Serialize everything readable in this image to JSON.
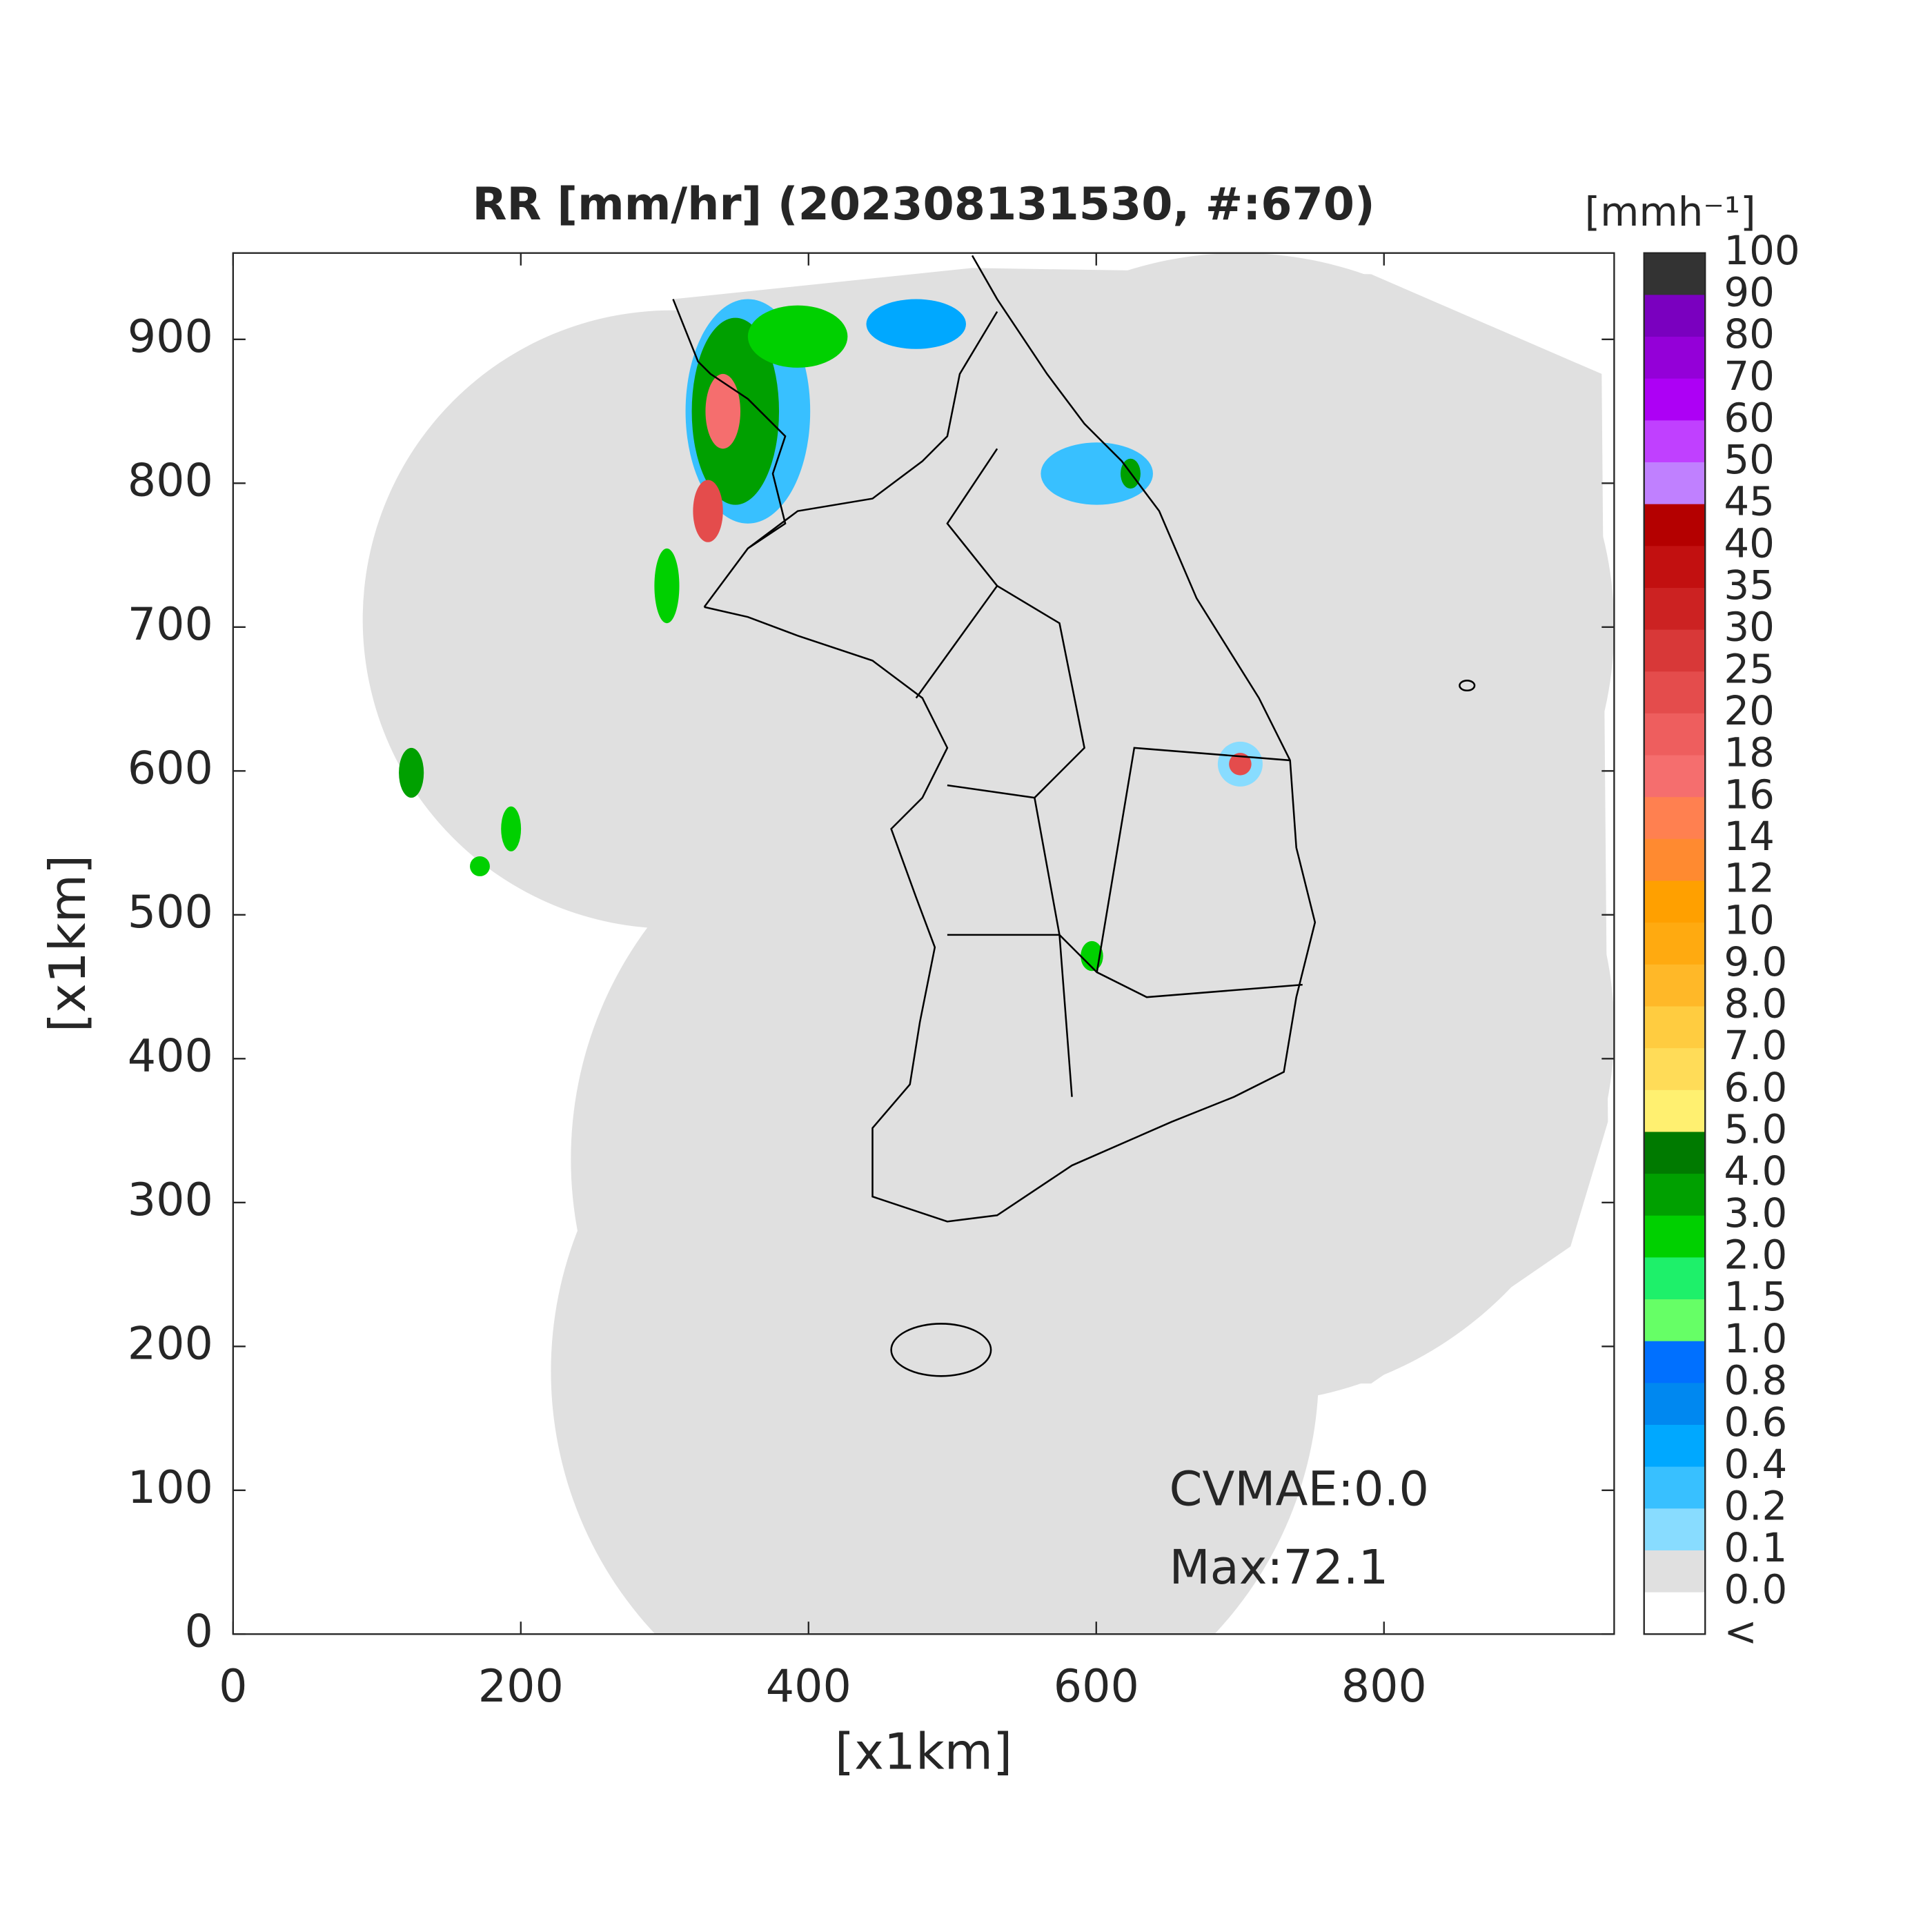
{
  "chart_data": {
    "type": "map",
    "title": "RR [mm/hr] (202308131530, #:670)",
    "x_label": "[x1km]",
    "y_label": "[x1km]",
    "xlim": [
      0,
      960
    ],
    "ylim": [
      0,
      960
    ],
    "xticks": [
      0,
      200,
      400,
      600,
      800
    ],
    "yticks": [
      0,
      100,
      200,
      300,
      400,
      500,
      600,
      700,
      800,
      900
    ],
    "annotations": [
      "CVMAE:0.0",
      "Max:72.1"
    ],
    "colorbar": {
      "unit_label": "[mmh⁻¹]",
      "levels": [
        "100",
        "90",
        "80",
        "70",
        "60",
        "50",
        "45",
        "40",
        "35",
        "30",
        "25",
        "20",
        "18",
        "16",
        "14",
        "12",
        "10",
        "9.0",
        "8.0",
        "7.0",
        "6.0",
        "5.0",
        "4.0",
        "3.0",
        "2.0",
        "1.5",
        "1.0",
        "0.8",
        "0.6",
        "0.4",
        "0.2",
        "0.1",
        "0.0",
        "<"
      ],
      "colors": [
        "#333333",
        "#7a00bf",
        "#9400d8",
        "#ad00f5",
        "#c040ff",
        "#c080ff",
        "#b40000",
        "#c21010",
        "#cc2222",
        "#d83838",
        "#e44c4c",
        "#ee5e5e",
        "#f56e6e",
        "#ff8050",
        "#ff8a30",
        "#ffa000",
        "#ffaa10",
        "#ffb828",
        "#ffcc40",
        "#ffdc58",
        "#fff070",
        "#007a00",
        "#00a000",
        "#00d000",
        "#1ef06a",
        "#66ff66",
        "#0070ff",
        "#0088f0",
        "#00a8ff",
        "#38c0ff",
        "#88dcff",
        "#e0e0e0",
        "#ffffff"
      ]
    }
  }
}
